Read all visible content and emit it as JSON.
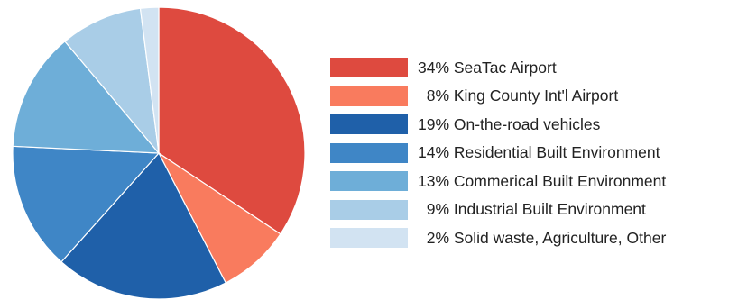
{
  "chart_data": {
    "type": "pie",
    "title": "",
    "start_angle_deg": 0,
    "direction": "clockwise",
    "slices": [
      {
        "label": "34% SeaTac Airport",
        "percent": 34,
        "color": "#de4a3f"
      },
      {
        "label": "  8% King County Int'l Airport",
        "percent": 8,
        "color": "#f97b5e"
      },
      {
        "label": "19% On-the-road vehicles",
        "percent": 19,
        "color": "#1f60a9"
      },
      {
        "label": "14% Residential Built Environment",
        "percent": 14,
        "color": "#3f86c6"
      },
      {
        "label": "13% Commerical Built Environment",
        "percent": 13,
        "color": "#6eaed8"
      },
      {
        "label": "  9% Industrial Built Environment",
        "percent": 9,
        "color": "#a9cde7"
      },
      {
        "label": "  2% Solid waste, Agriculture, Other",
        "percent": 2,
        "color": "#d2e3f2"
      }
    ],
    "legend_position": "right"
  }
}
